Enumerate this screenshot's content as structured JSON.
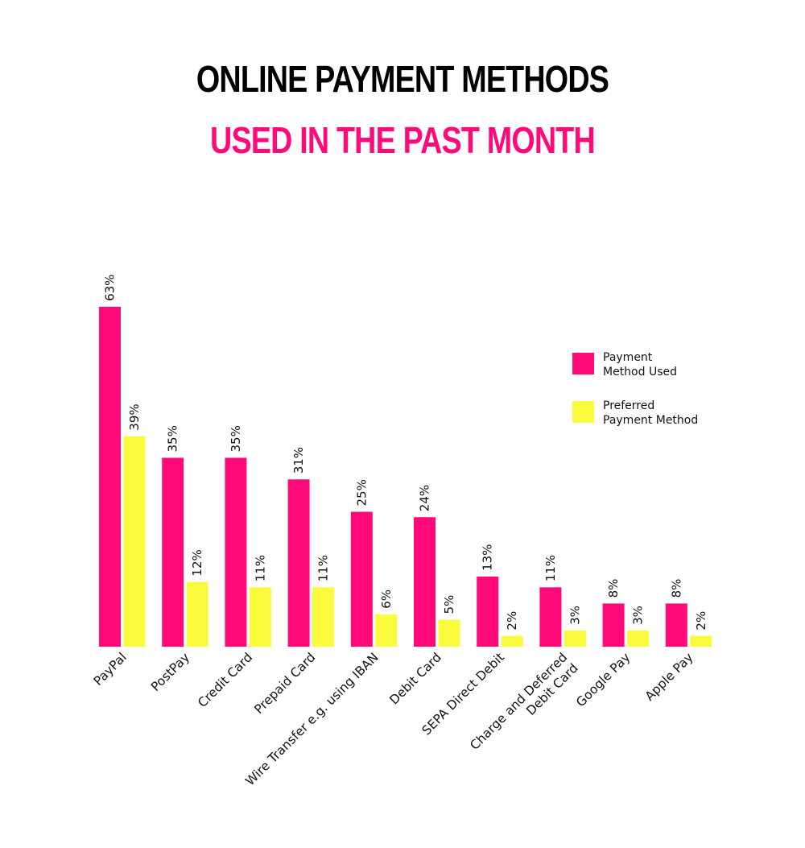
{
  "title": {
    "line1": "ONLINE PAYMENT METHODS",
    "line2": "USED IN THE PAST MONTH"
  },
  "colors": {
    "title_primary": "#000000",
    "title_accent": "#ff0a78",
    "series_used": "#ff0a78",
    "series_preferred": "#fbfb3d"
  },
  "chart_data": {
    "type": "bar",
    "title": "ONLINE PAYMENT METHODS USED IN THE PAST MONTH",
    "categories": [
      "PayPal",
      "PostPay",
      "Credit Card",
      "Prepaid Card",
      "Wire Transfer e.g. using IBAN",
      "Debit Card",
      "SEPA Direct Debit",
      "Charge and Deferred Debit Card",
      "Google Pay",
      "Apple Pay"
    ],
    "series": [
      {
        "name": "Payment Method Used",
        "values": [
          63,
          35,
          35,
          31,
          25,
          24,
          13,
          11,
          8,
          8
        ],
        "color": "#ff0a78"
      },
      {
        "name": "Preferred Payment Method",
        "values": [
          39,
          12,
          11,
          11,
          6,
          5,
          2,
          3,
          3,
          2
        ],
        "color": "#fbfb3d"
      }
    ],
    "value_suffix": "%",
    "xlabel": "",
    "ylabel": "",
    "grid": false,
    "legend_position": "right",
    "legend": [
      {
        "lines": [
          "Payment",
          "Method Used"
        ],
        "color": "#ff0a78"
      },
      {
        "lines": [
          "Preferred",
          "Payment Method"
        ],
        "color": "#fbfb3d"
      }
    ],
    "category_label_lines": [
      [
        "PayPal"
      ],
      [
        "PostPay"
      ],
      [
        "Credit Card"
      ],
      [
        "Prepaid Card"
      ],
      [
        "Wire Transfer e.g. using IBAN"
      ],
      [
        "Debit Card"
      ],
      [
        "SEPA Direct Debit"
      ],
      [
        "Charge and Deferred",
        "Debit Card"
      ],
      [
        "Google Pay"
      ],
      [
        "Apple Pay"
      ]
    ]
  }
}
